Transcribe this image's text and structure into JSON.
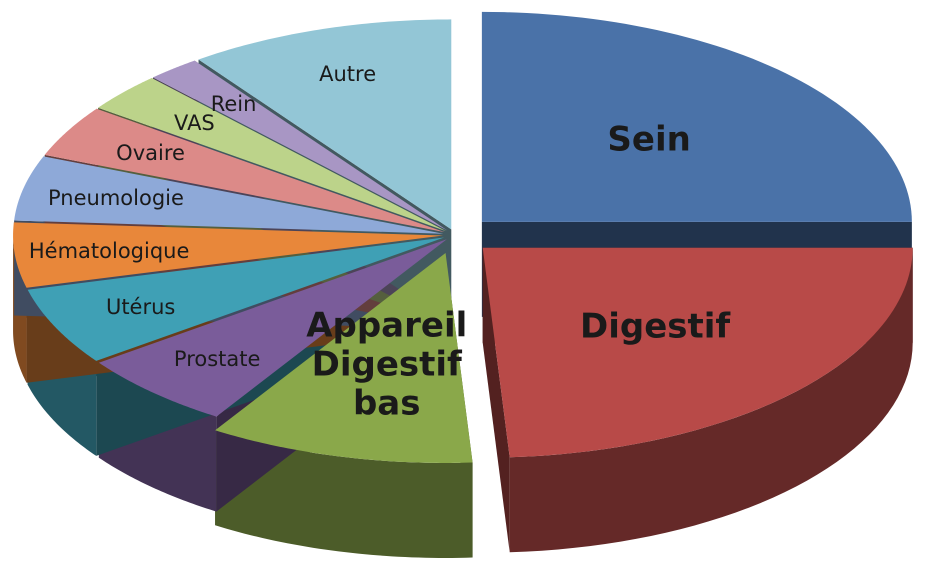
{
  "chart_data": {
    "type": "pie",
    "categories": [
      "Sein",
      "Digestif",
      "Appareil Digestif bas",
      "Prostate",
      "Utérus",
      "Hématologique",
      "Pneumologie",
      "Ovaire",
      "VAS",
      "Rein",
      "Autre"
    ],
    "values": [
      25,
      24,
      10,
      6,
      6,
      5,
      5,
      4,
      3,
      2,
      10
    ],
    "colors": [
      "#4a72a8",
      "#b84a48",
      "#8aa84a",
      "#7a5c9a",
      "#3fa0b5",
      "#e8873a",
      "#8ea9d8",
      "#dc8a88",
      "#bcd38a",
      "#a896c4",
      "#93c6d6"
    ]
  }
}
